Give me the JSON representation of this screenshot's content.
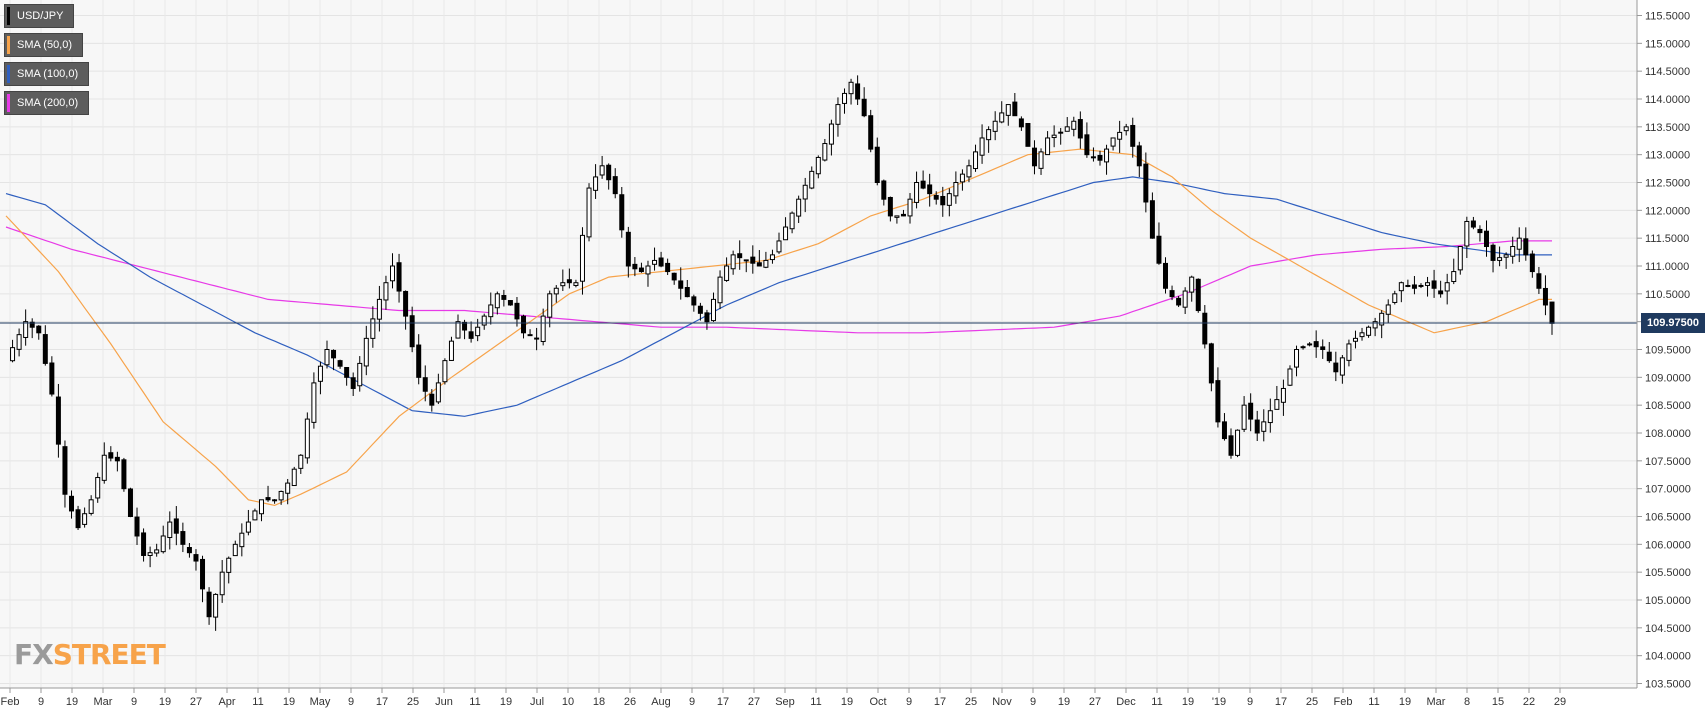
{
  "legend": [
    {
      "label": "USD/JPY",
      "color": "#000000"
    },
    {
      "label": "SMA (50,0)",
      "color": "#f7a34a"
    },
    {
      "label": "SMA (100,0)",
      "color": "#2f5fbf"
    },
    {
      "label": "SMA (200,0)",
      "color": "#e73ae7"
    }
  ],
  "logo": {
    "part1": "FX",
    "part2": "STREET"
  },
  "last_price": "109.97500",
  "chart_data": {
    "type": "candlestick",
    "title": "",
    "xlabel": "",
    "ylabel": "",
    "ylim": [
      103.5,
      115.5
    ],
    "y_ticks": [
      "103.5000",
      "104.0000",
      "104.5000",
      "105.0000",
      "105.5000",
      "106.0000",
      "106.5000",
      "107.0000",
      "107.5000",
      "108.0000",
      "108.5000",
      "109.0000",
      "109.5000",
      "110.0000",
      "110.5000",
      "111.0000",
      "111.5000",
      "112.0000",
      "112.5000",
      "113.0000",
      "113.5000",
      "114.0000",
      "114.5000",
      "115.0000",
      "115.5000"
    ],
    "x_ticks": [
      "Feb",
      "9",
      "19",
      "Mar",
      "9",
      "19",
      "27",
      "Apr",
      "11",
      "19",
      "May",
      "9",
      "17",
      "25",
      "Jun",
      "11",
      "19",
      "Jul",
      "10",
      "18",
      "26",
      "Aug",
      "9",
      "17",
      "27",
      "Sep",
      "11",
      "19",
      "Oct",
      "9",
      "17",
      "25",
      "Nov",
      "9",
      "19",
      "27",
      "Dec",
      "11",
      "19",
      "'19",
      "9",
      "17",
      "25",
      "Feb",
      "11",
      "19",
      "Mar",
      "8",
      "15",
      "22",
      "29"
    ],
    "current_price": 109.975,
    "grid": true,
    "legend_position": "top-left",
    "series_keypoints": [
      {
        "name": "USD/JPY",
        "points": [
          [
            0,
            109.3
          ],
          [
            3,
            110.0
          ],
          [
            5,
            109.8
          ],
          [
            7,
            108.7
          ],
          [
            9,
            106.9
          ],
          [
            11,
            106.3
          ],
          [
            13,
            106.8
          ],
          [
            15,
            107.6
          ],
          [
            17,
            107.5
          ],
          [
            19,
            106.5
          ],
          [
            21,
            105.8
          ],
          [
            23,
            105.9
          ],
          [
            25,
            106.4
          ],
          [
            27,
            106.0
          ],
          [
            29,
            105.7
          ],
          [
            31,
            104.7
          ],
          [
            33,
            105.5
          ],
          [
            35,
            106.0
          ],
          [
            37,
            106.4
          ],
          [
            39,
            106.8
          ],
          [
            41,
            106.8
          ],
          [
            43,
            107.1
          ],
          [
            45,
            107.6
          ],
          [
            47,
            108.9
          ],
          [
            49,
            109.5
          ],
          [
            51,
            109.2
          ],
          [
            53,
            108.8
          ],
          [
            55,
            109.7
          ],
          [
            57,
            110.4
          ],
          [
            59,
            111.0
          ],
          [
            61,
            110.1
          ],
          [
            63,
            109.0
          ],
          [
            65,
            108.5
          ],
          [
            67,
            109.3
          ],
          [
            69,
            110.0
          ],
          [
            71,
            109.7
          ],
          [
            73,
            110.1
          ],
          [
            75,
            110.5
          ],
          [
            77,
            110.3
          ],
          [
            79,
            109.8
          ],
          [
            81,
            109.7
          ],
          [
            83,
            110.5
          ],
          [
            85,
            110.7
          ],
          [
            87,
            110.7
          ],
          [
            89,
            112.4
          ],
          [
            91,
            112.8
          ],
          [
            93,
            112.3
          ],
          [
            95,
            111.0
          ],
          [
            97,
            110.9
          ],
          [
            99,
            111.1
          ],
          [
            101,
            110.9
          ],
          [
            103,
            110.6
          ],
          [
            105,
            110.3
          ],
          [
            107,
            110.0
          ],
          [
            109,
            110.8
          ],
          [
            111,
            111.2
          ],
          [
            113,
            111.1
          ],
          [
            115,
            111.0
          ],
          [
            117,
            111.2
          ],
          [
            119,
            111.7
          ],
          [
            121,
            112.2
          ],
          [
            123,
            112.7
          ],
          [
            125,
            113.2
          ],
          [
            127,
            113.9
          ],
          [
            129,
            114.3
          ],
          [
            131,
            113.7
          ],
          [
            133,
            112.5
          ],
          [
            135,
            111.9
          ],
          [
            137,
            111.9
          ],
          [
            139,
            112.5
          ],
          [
            141,
            112.3
          ],
          [
            143,
            112.1
          ],
          [
            145,
            112.5
          ],
          [
            147,
            112.8
          ],
          [
            149,
            113.3
          ],
          [
            151,
            113.6
          ],
          [
            153,
            113.9
          ],
          [
            155,
            113.5
          ],
          [
            157,
            112.8
          ],
          [
            159,
            113.3
          ],
          [
            161,
            113.4
          ],
          [
            163,
            113.6
          ],
          [
            165,
            113.0
          ],
          [
            167,
            112.9
          ],
          [
            169,
            113.3
          ],
          [
            171,
            113.5
          ],
          [
            173,
            112.8
          ],
          [
            175,
            111.5
          ],
          [
            177,
            110.6
          ],
          [
            179,
            110.3
          ],
          [
            181,
            110.8
          ],
          [
            183,
            109.6
          ],
          [
            185,
            108.2
          ],
          [
            187,
            107.6
          ],
          [
            189,
            108.5
          ],
          [
            191,
            108.0
          ],
          [
            193,
            108.4
          ],
          [
            195,
            108.8
          ],
          [
            197,
            109.5
          ],
          [
            199,
            109.6
          ],
          [
            201,
            109.5
          ],
          [
            203,
            109.1
          ],
          [
            205,
            109.6
          ],
          [
            207,
            109.8
          ],
          [
            209,
            110.0
          ],
          [
            211,
            110.3
          ],
          [
            213,
            110.7
          ],
          [
            215,
            110.6
          ],
          [
            217,
            110.7
          ],
          [
            219,
            110.5
          ],
          [
            221,
            110.9
          ],
          [
            223,
            111.8
          ],
          [
            225,
            111.6
          ],
          [
            227,
            111.1
          ],
          [
            229,
            111.2
          ],
          [
            231,
            111.5
          ],
          [
            233,
            110.9
          ],
          [
            235,
            110.3
          ],
          [
            236,
            109.97
          ]
        ]
      },
      {
        "name": "SMA (50,0)",
        "points": [
          [
            0,
            111.9
          ],
          [
            8,
            110.9
          ],
          [
            16,
            109.6
          ],
          [
            24,
            108.2
          ],
          [
            32,
            107.4
          ],
          [
            37,
            106.8
          ],
          [
            41,
            106.7
          ],
          [
            45,
            106.9
          ],
          [
            52,
            107.3
          ],
          [
            60,
            108.3
          ],
          [
            68,
            109.0
          ],
          [
            74,
            109.5
          ],
          [
            80,
            110.0
          ],
          [
            86,
            110.5
          ],
          [
            92,
            110.8
          ],
          [
            100,
            110.9
          ],
          [
            108,
            111.0
          ],
          [
            116,
            111.1
          ],
          [
            124,
            111.4
          ],
          [
            132,
            111.9
          ],
          [
            140,
            112.2
          ],
          [
            148,
            112.6
          ],
          [
            156,
            113.0
          ],
          [
            164,
            113.1
          ],
          [
            172,
            113.0
          ],
          [
            178,
            112.6
          ],
          [
            184,
            112.0
          ],
          [
            190,
            111.5
          ],
          [
            196,
            111.1
          ],
          [
            202,
            110.7
          ],
          [
            208,
            110.3
          ],
          [
            214,
            110.0
          ],
          [
            218,
            109.8
          ],
          [
            222,
            109.9
          ],
          [
            226,
            110.0
          ],
          [
            230,
            110.2
          ],
          [
            234,
            110.4
          ],
          [
            236,
            110.4
          ]
        ]
      },
      {
        "name": "SMA (100,0)",
        "points": [
          [
            0,
            112.3
          ],
          [
            6,
            112.1
          ],
          [
            14,
            111.4
          ],
          [
            22,
            110.8
          ],
          [
            30,
            110.3
          ],
          [
            38,
            109.8
          ],
          [
            46,
            109.4
          ],
          [
            54,
            108.9
          ],
          [
            62,
            108.4
          ],
          [
            70,
            108.3
          ],
          [
            78,
            108.5
          ],
          [
            86,
            108.9
          ],
          [
            94,
            109.3
          ],
          [
            102,
            109.8
          ],
          [
            110,
            110.3
          ],
          [
            118,
            110.7
          ],
          [
            126,
            111.0
          ],
          [
            134,
            111.3
          ],
          [
            142,
            111.6
          ],
          [
            150,
            111.9
          ],
          [
            158,
            112.2
          ],
          [
            166,
            112.5
          ],
          [
            172,
            112.6
          ],
          [
            178,
            112.5
          ],
          [
            186,
            112.3
          ],
          [
            194,
            112.2
          ],
          [
            202,
            111.9
          ],
          [
            210,
            111.6
          ],
          [
            218,
            111.4
          ],
          [
            224,
            111.3
          ],
          [
            230,
            111.2
          ],
          [
            236,
            111.2
          ]
        ]
      },
      {
        "name": "SMA (200,0)",
        "points": [
          [
            0,
            111.7
          ],
          [
            10,
            111.3
          ],
          [
            20,
            111.0
          ],
          [
            30,
            110.7
          ],
          [
            40,
            110.4
          ],
          [
            50,
            110.3
          ],
          [
            60,
            110.2
          ],
          [
            70,
            110.2
          ],
          [
            80,
            110.1
          ],
          [
            90,
            110.0
          ],
          [
            100,
            109.9
          ],
          [
            110,
            109.9
          ],
          [
            120,
            109.85
          ],
          [
            130,
            109.8
          ],
          [
            140,
            109.8
          ],
          [
            150,
            109.85
          ],
          [
            160,
            109.9
          ],
          [
            170,
            110.1
          ],
          [
            180,
            110.5
          ],
          [
            190,
            111.0
          ],
          [
            200,
            111.2
          ],
          [
            210,
            111.3
          ],
          [
            220,
            111.35
          ],
          [
            230,
            111.45
          ],
          [
            236,
            111.45
          ]
        ]
      }
    ]
  }
}
